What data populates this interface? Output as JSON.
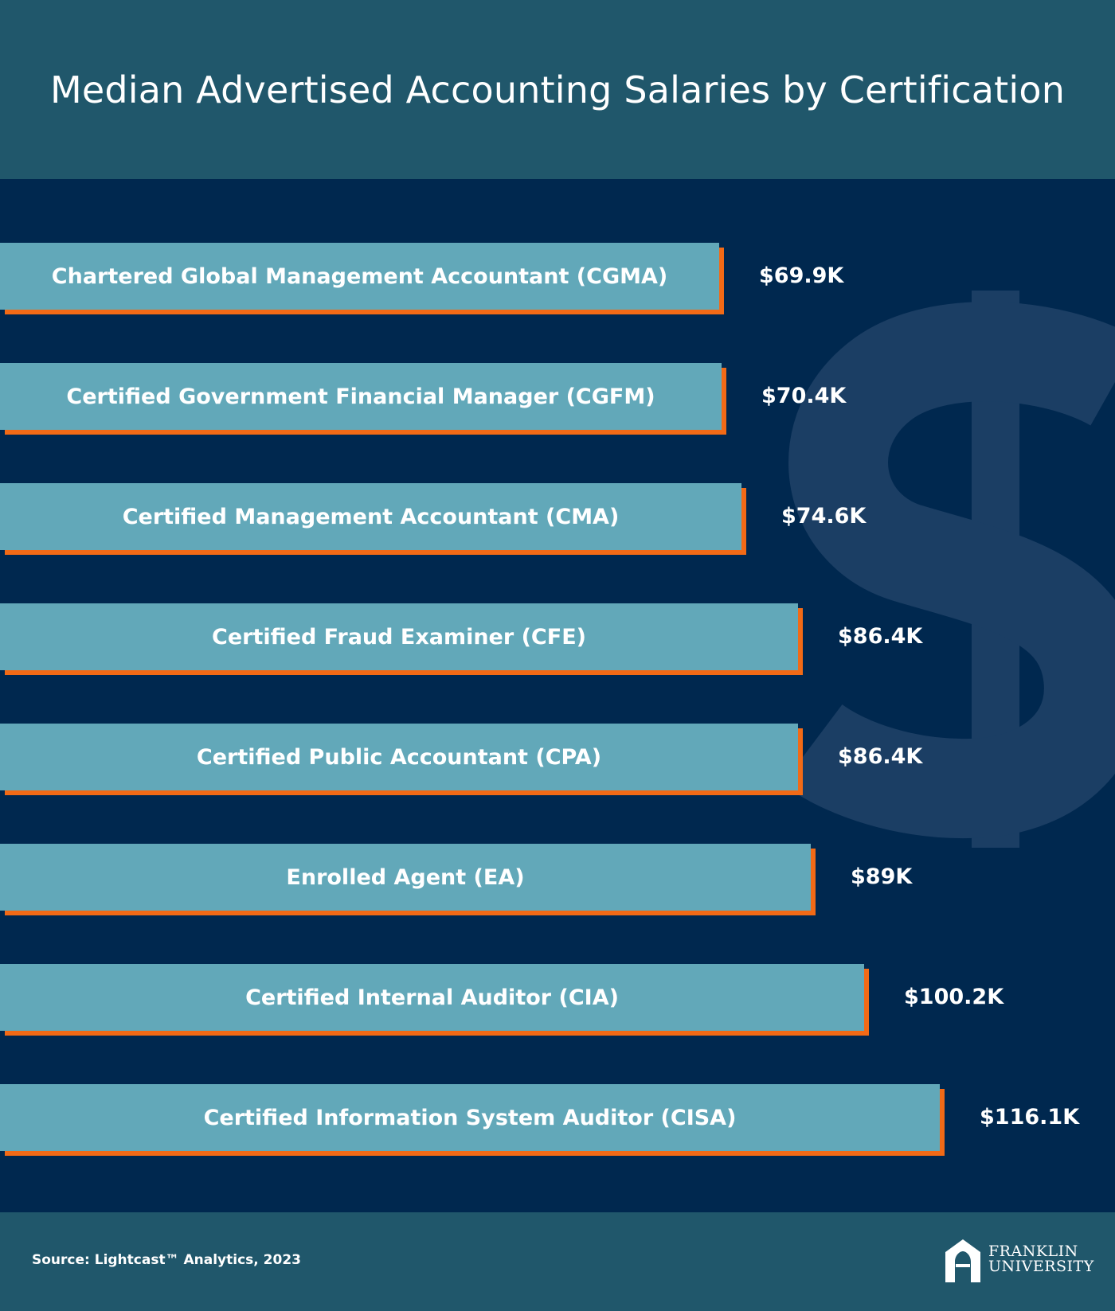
{
  "title": "Median Advertised Accounting Salaries by Certification",
  "source": "Source: Lightcast™ Analytics, 2023",
  "logo": {
    "line1": "FRANKLIN",
    "line2": "UNIVERSITY"
  },
  "colors": {
    "header_bg": "#20576b",
    "main_bg": "#00284f",
    "bar_fill": "#62a8b9",
    "bar_shadow": "#f26a16",
    "dollar_watermark": "#1b3e64"
  },
  "chart_data": {
    "type": "bar",
    "orientation": "horizontal",
    "title": "Median Advertised Accounting Salaries by Certification",
    "categories": [
      "Chartered Global Management Accountant (CGMA)",
      "Certified Government Financial Manager (CGFM)",
      "Certified Management Accountant (CMA)",
      "Certified Fraud Examiner (CFE)",
      "Certified Public Accountant (CPA)",
      "Enrolled Agent (EA)",
      "Certified Internal Auditor (CIA)",
      "Certified Information System Auditor (CISA)"
    ],
    "values": [
      69.9,
      70.4,
      74.6,
      86.4,
      86.4,
      89,
      100.2,
      116.1
    ],
    "value_labels": [
      "$69.9K",
      "$70.4K",
      "$74.6K",
      "$86.4K",
      "$86.4K",
      "$89K",
      "$100.2K",
      "$116.1K"
    ],
    "unit": "thousands USD",
    "xlabel": "",
    "ylabel": "",
    "grid": false,
    "legend": "none"
  }
}
